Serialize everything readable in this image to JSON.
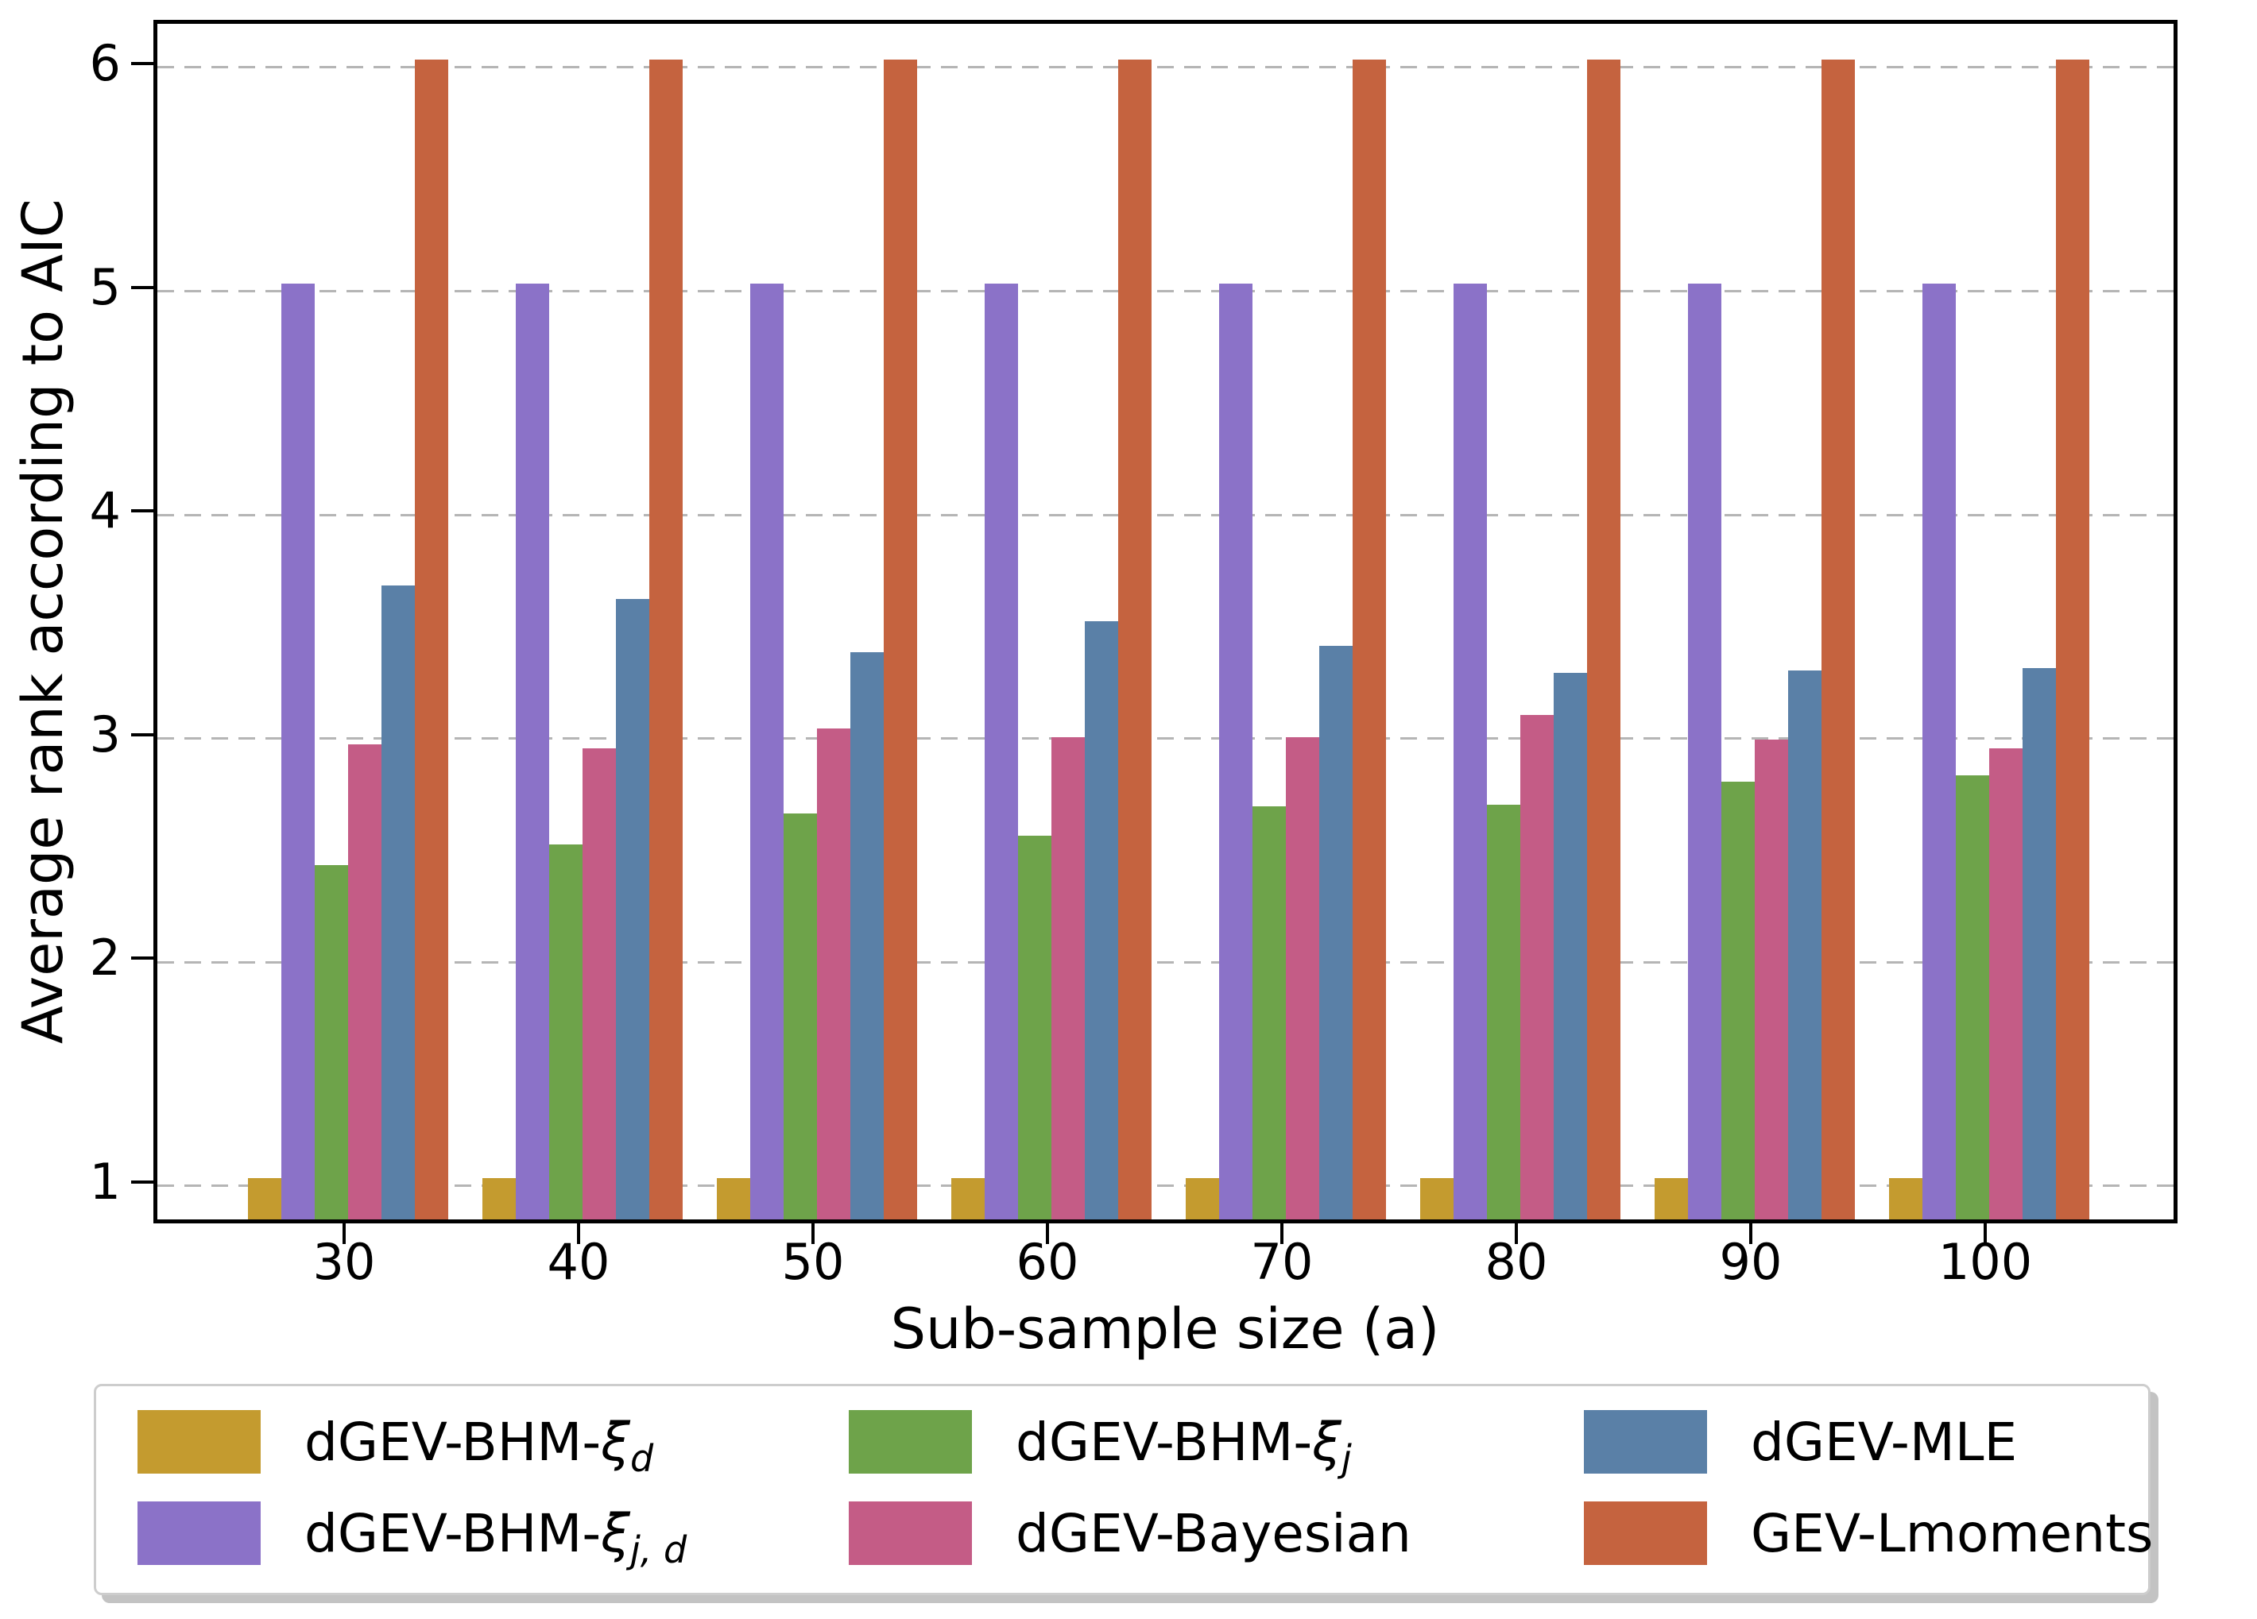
{
  "chart_data": {
    "type": "bar",
    "title": "",
    "xlabel": "Sub-sample size (a)",
    "ylabel": "Average rank according to AIC",
    "categories": [
      "30",
      "40",
      "50",
      "60",
      "70",
      "80",
      "90",
      "100"
    ],
    "y_tick_labels": [
      "1",
      "2",
      "3",
      "4",
      "5",
      "6"
    ],
    "ylim": [
      0.815,
      6.195
    ],
    "grid": {
      "axis": "y",
      "style": "dashed",
      "color": "#b5b5b5"
    },
    "legend": {
      "position": "below-chart",
      "columns": 3,
      "order": "column-major"
    },
    "series": [
      {
        "name": "dGEV-BHM-xi_d",
        "legend_text": "dGEV-BHM-",
        "legend_math": "ξ",
        "legend_sub": "d",
        "color": "#C49B2F",
        "values": [
          1.0,
          1.0,
          1.0,
          1.0,
          1.0,
          1.0,
          1.0,
          1.0
        ]
      },
      {
        "name": "dGEV-BHM-xi_j_d",
        "legend_text": "dGEV-BHM-",
        "legend_math": "ξ",
        "legend_sub": "j, d",
        "color": "#8B72C8",
        "values": [
          5.0,
          5.0,
          5.0,
          5.0,
          5.0,
          5.0,
          5.0,
          5.0
        ]
      },
      {
        "name": "dGEV-BHM-xi_j",
        "legend_text": "dGEV-BHM-",
        "legend_math": "ξ",
        "legend_sub": "j",
        "color": "#6EA34A",
        "values": [
          2.4,
          2.49,
          2.63,
          2.53,
          2.66,
          2.67,
          2.77,
          2.8
        ]
      },
      {
        "name": "dGEV-Bayesian",
        "legend_text": "dGEV-Bayesian",
        "legend_math": "",
        "legend_sub": "",
        "color": "#C45C86",
        "values": [
          2.94,
          2.92,
          3.01,
          2.97,
          2.97,
          3.07,
          2.96,
          2.92
        ]
      },
      {
        "name": "dGEV-MLE",
        "legend_text": "dGEV-MLE",
        "legend_math": "",
        "legend_sub": "",
        "color": "#5A80A7",
        "values": [
          3.65,
          3.59,
          3.35,
          3.49,
          3.38,
          3.26,
          3.27,
          3.28
        ]
      },
      {
        "name": "GEV-Lmoments",
        "legend_text": "GEV-Lmoments",
        "legend_math": "",
        "legend_sub": "",
        "color": "#C5633F",
        "values": [
          6.0,
          6.0,
          6.0,
          6.0,
          6.0,
          6.0,
          6.0,
          6.0
        ]
      }
    ]
  }
}
